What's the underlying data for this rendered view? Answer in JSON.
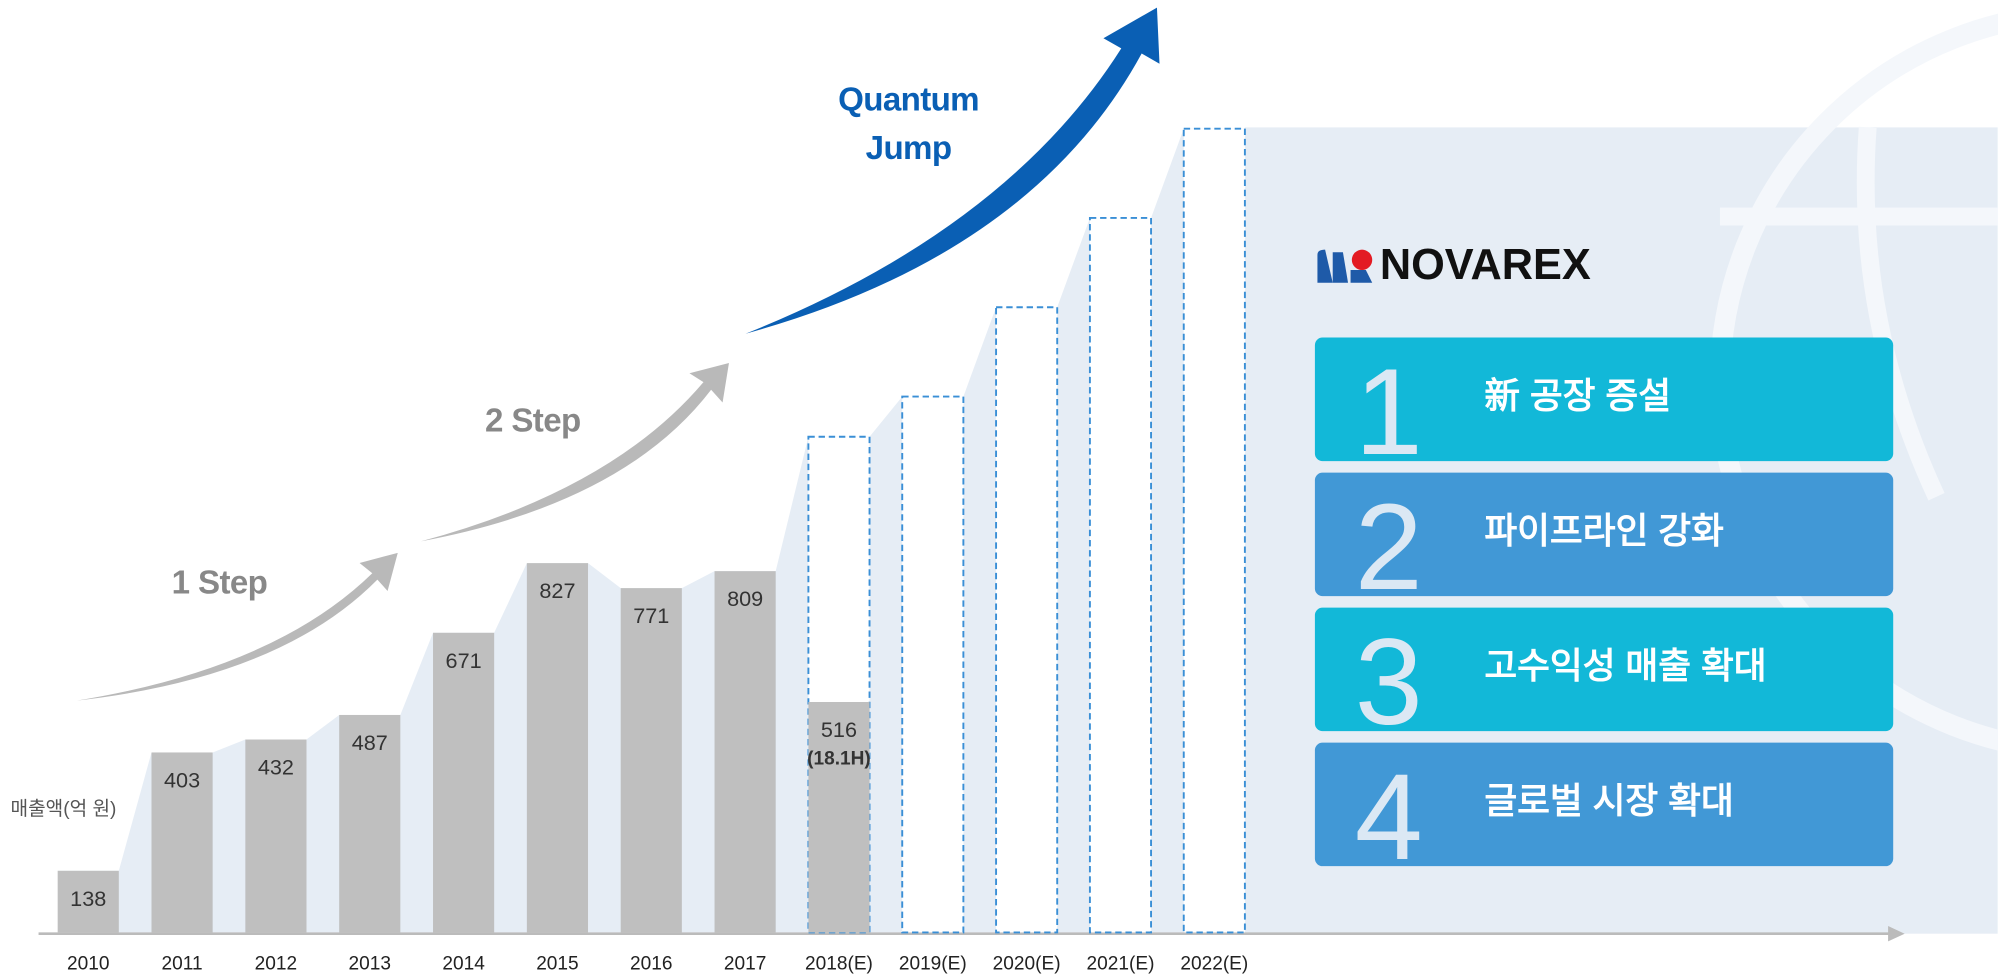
{
  "chart_data": {
    "type": "bar",
    "y_label": "매출액(억 원)",
    "categories": [
      "2010",
      "2011",
      "2012",
      "2013",
      "2014",
      "2015",
      "2016",
      "2017",
      "2018(E)",
      "2019(E)",
      "2020(E)",
      "2021(E)",
      "2022(E)"
    ],
    "values": [
      138,
      403,
      432,
      487,
      671,
      827,
      771,
      809,
      516,
      null,
      null,
      null,
      null
    ],
    "estimates": [
      null,
      null,
      null,
      null,
      null,
      null,
      null,
      null,
      1110,
      1200,
      1400,
      1600,
      1800
    ],
    "note": "(18.1H)",
    "color": "#bfbfbf",
    "estimate_color": "#3a8fd6",
    "annotations": {
      "step1": "1 Step",
      "step2": "2 Step",
      "quantum": [
        "Quantum",
        "Jump"
      ]
    }
  },
  "panel": {
    "logo": "NOVAREX",
    "items": [
      {
        "number": "1",
        "text": "新 공장 증설",
        "color": "#12b8d8"
      },
      {
        "number": "2",
        "text": "파이프라인 강화",
        "color": "#4198d6"
      },
      {
        "number": "3",
        "text": "고수익성 매출 확대",
        "color": "#12b8d8"
      },
      {
        "number": "4",
        "text": "글로벌 시장 확대",
        "color": "#4198d6"
      }
    ]
  }
}
